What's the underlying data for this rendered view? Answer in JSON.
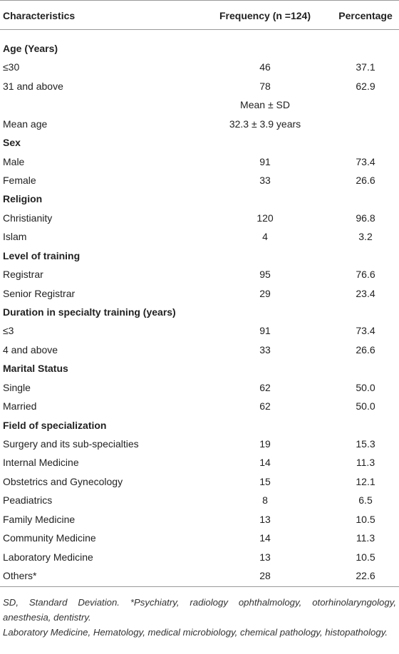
{
  "table": {
    "headers": [
      "Characteristics",
      "Frequency (n =124)",
      "Percentage"
    ],
    "rows": [
      {
        "section": "Age (Years)"
      },
      {
        "label": "≤30",
        "frequency": 46,
        "percentage": "37.1"
      },
      {
        "label": "31 and above",
        "frequency": 78,
        "percentage": "62.9"
      },
      {
        "frequency": "Mean ± SD"
      },
      {
        "label": "Mean age",
        "frequency": "32.3 ± 3.9 years"
      },
      {
        "section": "Sex"
      },
      {
        "label": "Male",
        "frequency": 91,
        "percentage": "73.4"
      },
      {
        "label": "Female",
        "frequency": 33,
        "percentage": "26.6"
      },
      {
        "section": "Religion"
      },
      {
        "label": "Christianity",
        "frequency": 120,
        "percentage": "96.8"
      },
      {
        "label": "Islam",
        "frequency": 4,
        "percentage": "3.2"
      },
      {
        "section": "Level of training"
      },
      {
        "label": "Registrar",
        "frequency": 95,
        "percentage": "76.6"
      },
      {
        "label": "Senior Registrar",
        "frequency": 29,
        "percentage": "23.4"
      },
      {
        "section": "Duration in specialty training (years)"
      },
      {
        "label": "≤3",
        "frequency": 91,
        "percentage": "73.4"
      },
      {
        "label": "4 and above",
        "frequency": 33,
        "percentage": "26.6"
      },
      {
        "section": "Marital Status"
      },
      {
        "label": "Single",
        "frequency": 62,
        "percentage": "50.0"
      },
      {
        "label": "Married",
        "frequency": 62,
        "percentage": "50.0"
      },
      {
        "section": "Field of specialization"
      },
      {
        "label": "Surgery and its sub-specialties",
        "frequency": 19,
        "percentage": "15.3"
      },
      {
        "label": "Internal Medicine",
        "frequency": 14,
        "percentage": "11.3"
      },
      {
        "label": "Obstetrics and Gynecology",
        "frequency": 15,
        "percentage": "12.1"
      },
      {
        "label": "Peadiatrics",
        "frequency": 8,
        "percentage": "6.5"
      },
      {
        "label": "Family Medicine",
        "frequency": 13,
        "percentage": "10.5"
      },
      {
        "label": "Community Medicine",
        "frequency": 14,
        "percentage": "11.3"
      },
      {
        "label": "Laboratory Medicine",
        "frequency": 13,
        "percentage": "10.5"
      },
      {
        "label": "Others*",
        "frequency": 28,
        "percentage": "22.6"
      }
    ]
  },
  "footnotes": [
    "SD, Standard Deviation. *Psychiatry, radiology ophthalmology, otorhinolaryngology, anesthesia, dentistry.",
    "Laboratory Medicine, Hematology, medical microbiology, chemical pathology, histopathology."
  ]
}
